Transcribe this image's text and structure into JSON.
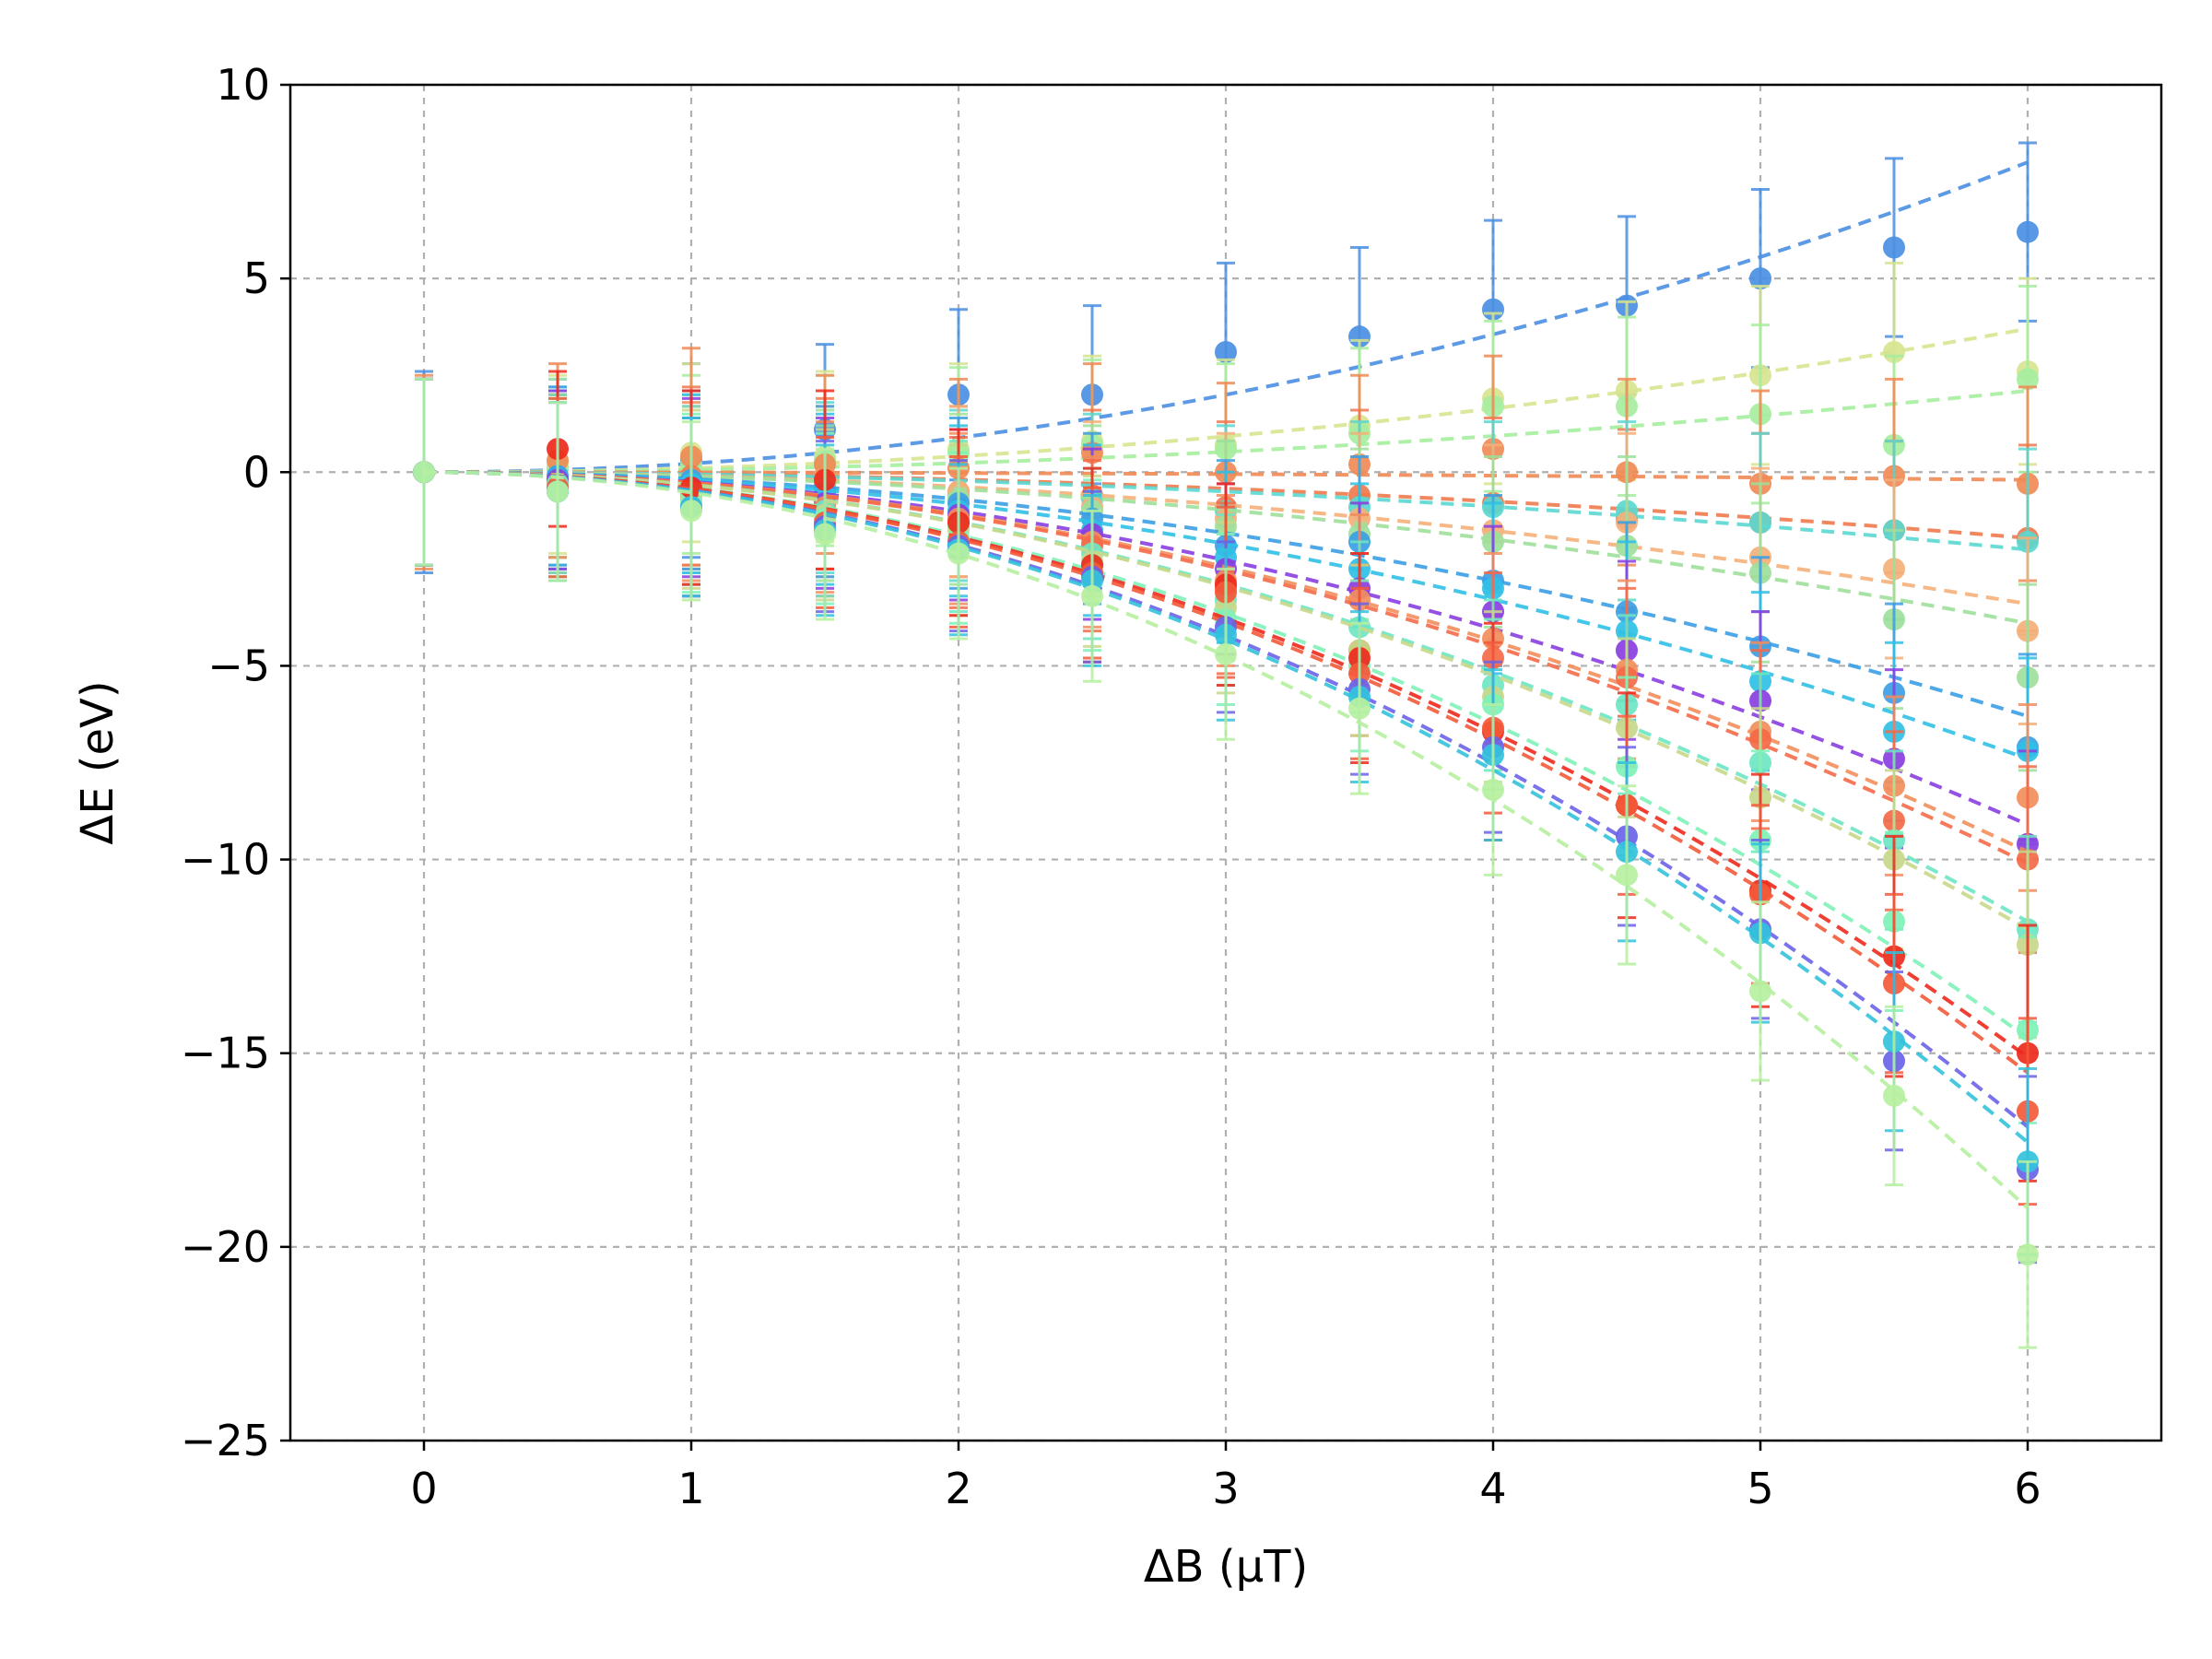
{
  "chart_data": {
    "type": "scatter",
    "title": "",
    "xlabel": "ΔB (μT)",
    "ylabel": "ΔE (eV)",
    "xlim": [
      -0.5,
      6.5
    ],
    "ylim": [
      -25,
      10
    ],
    "xticks": [
      0,
      1,
      2,
      3,
      4,
      5,
      6
    ],
    "yticks": [
      -25,
      -20,
      -15,
      -10,
      -5,
      0,
      5,
      10
    ],
    "xtick_labels": [
      "0",
      "1",
      "2",
      "3",
      "4",
      "5",
      "6"
    ],
    "ytick_labels": [
      "−25",
      "−20",
      "−15",
      "−10",
      "−5",
      "0",
      "5",
      "10"
    ],
    "grid": true,
    "legend": "none",
    "x": [
      0,
      0.5,
      1,
      1.5,
      2,
      2.5,
      3,
      3.5,
      4,
      4.5,
      5,
      5.5,
      6
    ],
    "series": [
      {
        "color": "#4b8fe2",
        "y": [
          0,
          0.1,
          0.3,
          1.1,
          2.0,
          2.0,
          3.1,
          3.5,
          4.2,
          4.3,
          5.0,
          5.8,
          6.2
        ],
        "err": [
          2.6,
          2.3,
          2.5,
          2.2,
          2.2,
          2.3,
          2.3,
          2.3,
          2.3,
          2.3,
          2.3,
          2.3,
          2.3
        ],
        "fit_end": 8.0
      },
      {
        "color": "#d7e48f",
        "y": [
          0,
          0.2,
          0.5,
          0.4,
          0.6,
          0.8,
          0.7,
          1.2,
          1.9,
          2.1,
          2.5,
          3.1,
          2.6
        ],
        "err": [
          2.4,
          2.3,
          2.3,
          2.2,
          2.2,
          2.2,
          2.2,
          2.2,
          2.2,
          2.3,
          2.3,
          2.3,
          2.4
        ],
        "fit_end": 3.7
      },
      {
        "color": "#a6eea0",
        "y": [
          0,
          0.1,
          0.2,
          0.3,
          0.5,
          0.7,
          0.6,
          1.0,
          1.7,
          1.7,
          1.5,
          0.7,
          2.4
        ],
        "err": [
          2.4,
          2.3,
          2.3,
          2.2,
          2.2,
          2.2,
          2.2,
          2.2,
          2.2,
          2.3,
          2.3,
          2.3,
          2.4
        ],
        "fit_end": 2.1
      },
      {
        "color": "#f08a55",
        "y": [
          0,
          0.3,
          0.4,
          0.2,
          0.1,
          0.5,
          0.0,
          0.2,
          0.6,
          0.0,
          -0.3,
          -0.1,
          -0.3
        ],
        "err": [
          2.5,
          2.5,
          2.8,
          2.3,
          2.3,
          2.3,
          2.3,
          2.3,
          2.4,
          2.4,
          2.4,
          2.5,
          2.5
        ],
        "fit_end": -0.2
      },
      {
        "color": "#ef7a4e",
        "y": [
          0,
          -0.2,
          -0.1,
          -0.3,
          -0.5,
          -0.6,
          -0.9,
          -0.6,
          -0.8,
          -1.2,
          -1.3,
          -1.5,
          -1.7
        ],
        "err": [
          2.4,
          2.3,
          2.3,
          2.2,
          2.2,
          2.2,
          2.2,
          2.2,
          2.2,
          2.3,
          2.3,
          2.3,
          2.4
        ],
        "fit_end": -1.7
      },
      {
        "color": "#5bd8d0",
        "y": [
          0,
          -0.1,
          -0.2,
          -0.4,
          -0.6,
          -0.7,
          -1.0,
          -0.9,
          -0.9,
          -1.0,
          -1.3,
          -1.5,
          -1.8
        ],
        "err": [
          2.4,
          2.3,
          2.3,
          2.2,
          2.2,
          2.2,
          2.2,
          2.2,
          2.2,
          2.3,
          2.3,
          2.3,
          2.4
        ],
        "fit_end": -2.0
      },
      {
        "color": "#f5b07a",
        "y": [
          0,
          -0.2,
          -0.2,
          -0.5,
          -0.5,
          -0.9,
          -1.2,
          -1.2,
          -1.5,
          -1.3,
          -2.2,
          -2.5,
          -4.1
        ],
        "err": [
          2.4,
          2.3,
          2.3,
          2.2,
          2.2,
          2.2,
          2.2,
          2.2,
          2.2,
          2.3,
          2.3,
          2.3,
          2.4
        ],
        "fit_end": -3.4
      },
      {
        "color": "#9ee09b",
        "y": [
          0,
          -0.3,
          -0.3,
          -0.6,
          -0.7,
          -1.0,
          -1.4,
          -1.6,
          -1.8,
          -1.9,
          -2.6,
          -3.8,
          -5.3
        ],
        "err": [
          2.4,
          2.3,
          2.3,
          2.2,
          2.2,
          2.2,
          2.2,
          2.2,
          2.2,
          2.3,
          2.3,
          2.3,
          2.4
        ],
        "fit_end": -3.9
      },
      {
        "color": "#3b9ee4",
        "y": [
          0,
          -0.1,
          -0.2,
          -0.5,
          -0.8,
          -1.2,
          -1.9,
          -1.8,
          -2.8,
          -3.6,
          -4.5,
          -5.7,
          -7.1
        ],
        "err": [
          2.4,
          2.3,
          2.3,
          2.2,
          2.2,
          2.2,
          2.2,
          2.2,
          2.2,
          2.3,
          2.3,
          2.3,
          2.4
        ],
        "fit_end": -6.3
      },
      {
        "color": "#2fc0e6",
        "y": [
          0,
          -0.2,
          -0.3,
          -0.7,
          -1.0,
          -1.5,
          -2.2,
          -2.5,
          -3.0,
          -4.1,
          -5.4,
          -6.7,
          -7.2
        ],
        "err": [
          2.4,
          2.3,
          2.3,
          2.2,
          2.2,
          2.2,
          2.2,
          2.2,
          2.2,
          2.3,
          2.3,
          2.3,
          2.4
        ],
        "fit_end": -7.4
      },
      {
        "color": "#8a3ee0",
        "y": [
          0,
          -0.2,
          -0.4,
          -0.8,
          -1.1,
          -1.6,
          -2.5,
          -3.0,
          -3.6,
          -4.6,
          -5.9,
          -7.4,
          -9.6
        ],
        "err": [
          2.4,
          2.3,
          2.3,
          2.2,
          2.2,
          2.2,
          2.2,
          2.2,
          2.2,
          2.3,
          2.3,
          2.3,
          2.4
        ],
        "fit_end": -9.1
      },
      {
        "color": "#f28e5c",
        "y": [
          0,
          -0.3,
          -0.5,
          -0.9,
          -1.2,
          -1.8,
          -2.8,
          -3.3,
          -4.3,
          -5.1,
          -6.7,
          -8.1,
          -8.4
        ],
        "err": [
          2.4,
          2.3,
          2.3,
          2.2,
          2.2,
          2.2,
          2.2,
          2.2,
          2.2,
          2.3,
          2.3,
          2.3,
          2.4
        ],
        "fit_end": -9.8
      },
      {
        "color": "#f46a48",
        "y": [
          0,
          -0.3,
          -0.6,
          -1.0,
          -1.3,
          -1.9,
          -3.0,
          -4.6,
          -4.8,
          -5.3,
          -6.9,
          -9.0,
          -10.0
        ],
        "err": [
          2.4,
          2.3,
          2.3,
          2.2,
          2.2,
          2.2,
          2.2,
          2.2,
          2.2,
          2.3,
          2.3,
          2.3,
          2.4
        ],
        "fit_end": -10.1
      },
      {
        "color": "#6de6c3",
        "y": [
          0,
          -0.3,
          -0.6,
          -1.0,
          -1.4,
          -2.1,
          -3.3,
          -4.0,
          -5.5,
          -6.0,
          -7.5,
          -9.5,
          -11.8
        ],
        "err": [
          2.4,
          2.3,
          2.3,
          2.2,
          2.2,
          2.2,
          2.2,
          2.2,
          2.2,
          2.3,
          2.3,
          2.3,
          2.4
        ],
        "fit_end": -11.6
      },
      {
        "color": "#c8d88a",
        "y": [
          0,
          -0.4,
          -0.7,
          -1.1,
          -1.5,
          -2.3,
          -3.5,
          -4.6,
          -5.8,
          -6.6,
          -8.4,
          -10.0,
          -12.2
        ],
        "err": [
          2.4,
          2.3,
          2.3,
          2.2,
          2.2,
          2.2,
          2.2,
          2.2,
          2.2,
          2.3,
          2.3,
          2.3,
          2.4
        ],
        "fit_end": -11.8
      },
      {
        "color": "#7ff2b8",
        "y": [
          0,
          -0.4,
          -0.8,
          -1.2,
          -1.7,
          -2.4,
          -3.8,
          -5.0,
          -6.0,
          -7.6,
          -9.5,
          -11.6,
          -14.4
        ],
        "err": [
          2.4,
          2.3,
          2.3,
          2.2,
          2.2,
          2.2,
          2.2,
          2.2,
          2.2,
          2.3,
          2.3,
          2.3,
          2.4
        ],
        "fit_end": -14.6
      },
      {
        "color": "#ee2a1c",
        "y": [
          0,
          0.6,
          -0.4,
          -0.2,
          -1.3,
          -2.4,
          -2.9,
          -4.8,
          -6.7,
          -8.6,
          -10.8,
          -12.5,
          -15.0
        ],
        "err": [
          2.4,
          2.0,
          2.5,
          2.3,
          2.4,
          2.5,
          2.6,
          2.7,
          2.8,
          2.9,
          3.0,
          3.1,
          3.3
        ],
        "fit_end": -15.1
      },
      {
        "color": "#f35a3a",
        "y": [
          0,
          -0.4,
          -0.9,
          -1.3,
          -1.8,
          -2.6,
          -3.1,
          -5.2,
          -6.6,
          -8.6,
          -10.9,
          -13.2,
          -16.5
        ],
        "err": [
          2.4,
          2.3,
          2.3,
          2.2,
          2.2,
          2.2,
          2.2,
          2.2,
          2.2,
          2.3,
          2.3,
          2.3,
          2.4
        ],
        "fit_end": -15.5
      },
      {
        "color": "#6a63e8",
        "y": [
          0,
          -0.5,
          -0.9,
          -1.4,
          -1.9,
          -2.7,
          -4.0,
          -5.6,
          -7.1,
          -9.4,
          -11.8,
          -15.2,
          -18.0
        ],
        "err": [
          2.4,
          2.3,
          2.3,
          2.2,
          2.2,
          2.2,
          2.2,
          2.2,
          2.2,
          2.3,
          2.3,
          2.3,
          2.4
        ],
        "fit_end": -16.9
      },
      {
        "color": "#33c2dc",
        "y": [
          0,
          -0.5,
          -0.9,
          -1.5,
          -2.0,
          -2.8,
          -4.2,
          -5.8,
          -7.3,
          -9.8,
          -11.9,
          -14.7,
          -17.8
        ],
        "err": [
          2.4,
          2.3,
          2.3,
          2.2,
          2.2,
          2.2,
          2.2,
          2.2,
          2.2,
          2.3,
          2.3,
          2.3,
          2.4
        ],
        "fit_end": -17.3
      },
      {
        "color": "#b6f0a0",
        "y": [
          0,
          -0.5,
          -1.0,
          -1.6,
          -2.1,
          -3.2,
          -4.7,
          -6.1,
          -8.2,
          -10.4,
          -13.4,
          -16.1,
          -20.2
        ],
        "err": [
          2.4,
          2.3,
          2.3,
          2.2,
          2.2,
          2.2,
          2.2,
          2.2,
          2.2,
          2.3,
          2.3,
          2.3,
          2.4
        ],
        "fit_end": -19.0
      }
    ]
  }
}
